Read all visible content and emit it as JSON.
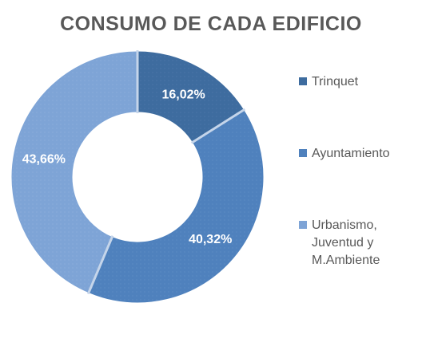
{
  "chart_data": {
    "type": "pie",
    "subtype": "donut",
    "title": "CONSUMO DE CADA EDIFICIO",
    "categories": [
      "Trinquet",
      "Ayuntamiento",
      "Urbanismo, Juventud y M.Ambiente"
    ],
    "values": [
      16.02,
      40.32,
      43.66
    ],
    "value_labels": [
      "16,02%",
      "40,32%",
      "43,66%"
    ],
    "unit": "%",
    "legend_position": "right",
    "colors": [
      "#3e6c9f",
      "#4f81bd",
      "#7ea4d6"
    ]
  },
  "legend": {
    "items": [
      {
        "label": "Trinquet",
        "color": "#3e6c9f"
      },
      {
        "label": "Ayuntamiento",
        "color": "#4f81bd"
      },
      {
        "label": "Urbanismo, Juventud y M.Ambiente",
        "color": "#7ea4d6"
      }
    ]
  }
}
